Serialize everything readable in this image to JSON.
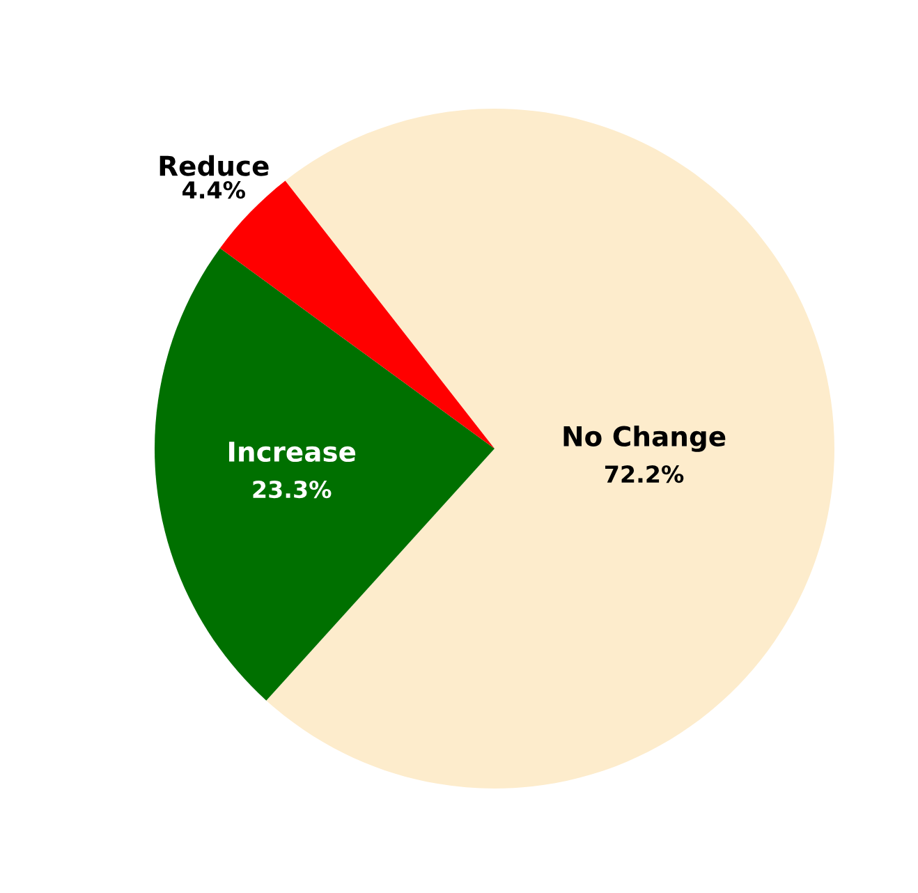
{
  "chart_data": {
    "type": "pie",
    "categories": [
      "No Change",
      "Increase",
      "Reduce"
    ],
    "values": [
      72.2,
      23.3,
      4.4
    ],
    "colors": [
      "#fdeccc",
      "#007000",
      "#ff0000"
    ],
    "value_labels": [
      "72.2%",
      "23.3%",
      "4.4%"
    ]
  }
}
